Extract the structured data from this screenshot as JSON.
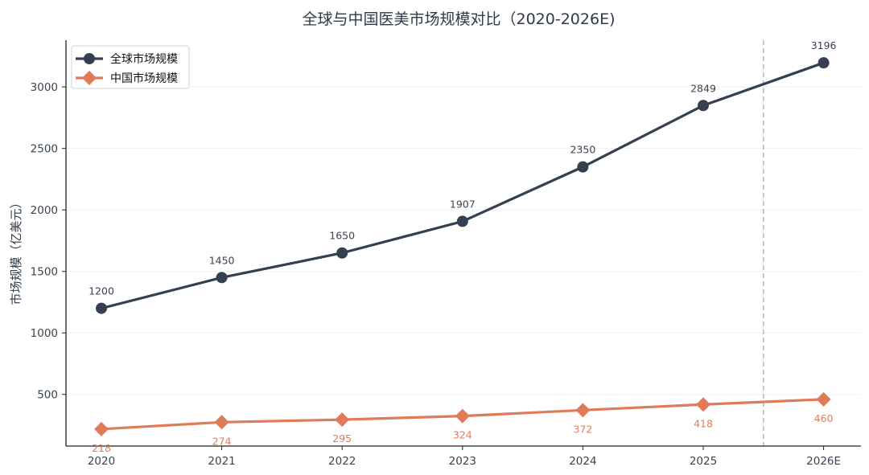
{
  "chart_data": {
    "type": "line",
    "title": "全球与中国医美市场规模对比（2020-2026E)",
    "xlabel": "",
    "ylabel": "市场规模（亿美元）",
    "categories": [
      "2020",
      "2021",
      "2022",
      "2023",
      "2024",
      "2025",
      "2026E"
    ],
    "yticks": [
      500,
      1000,
      1500,
      2000,
      2500,
      3000
    ],
    "ylim": [
      80,
      3380
    ],
    "grid": true,
    "legend_position": "top-left",
    "forecast_divider_between": [
      "2025",
      "2026E"
    ],
    "series": [
      {
        "name": "全球市场规模",
        "marker": "circle",
        "color": "#34404f",
        "values": [
          1200,
          1450,
          1650,
          1907,
          2350,
          2849,
          3196
        ],
        "labels": [
          "1200",
          "1450",
          "1650",
          "1907",
          "2350",
          "2849",
          "3196"
        ]
      },
      {
        "name": "中国市场规模",
        "marker": "diamond",
        "color": "#e07b5a",
        "values": [
          218,
          274,
          295,
          324,
          372,
          418,
          460
        ],
        "labels": [
          "218",
          "274",
          "295",
          "324",
          "372",
          "418",
          "460"
        ]
      }
    ]
  }
}
